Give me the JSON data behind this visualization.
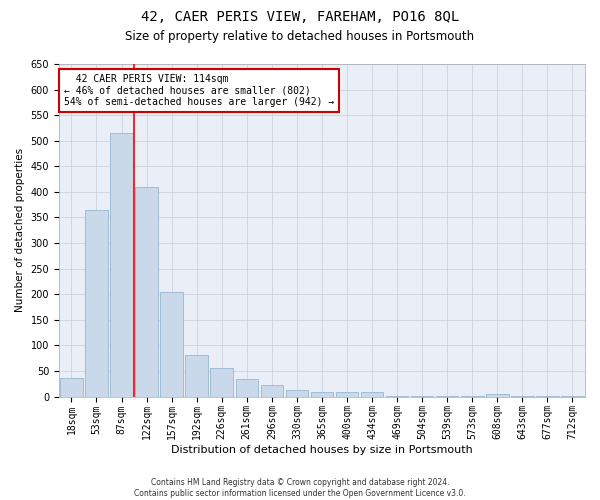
{
  "title": "42, CAER PERIS VIEW, FAREHAM, PO16 8QL",
  "subtitle": "Size of property relative to detached houses in Portsmouth",
  "xlabel": "Distribution of detached houses by size in Portsmouth",
  "ylabel": "Number of detached properties",
  "categories": [
    "18sqm",
    "53sqm",
    "87sqm",
    "122sqm",
    "157sqm",
    "192sqm",
    "226sqm",
    "261sqm",
    "296sqm",
    "330sqm",
    "365sqm",
    "400sqm",
    "434sqm",
    "469sqm",
    "504sqm",
    "539sqm",
    "573sqm",
    "608sqm",
    "643sqm",
    "677sqm",
    "712sqm"
  ],
  "values": [
    37,
    365,
    515,
    410,
    205,
    82,
    55,
    35,
    22,
    12,
    8,
    8,
    8,
    2,
    2,
    2,
    2,
    5,
    2,
    2,
    2
  ],
  "bar_color": "#cad9ea",
  "bar_edge_color": "#8aaec8",
  "red_line_index": 3,
  "annotation_line1": "  42 CAER PERIS VIEW: 114sqm  ",
  "annotation_line2": "← 46% of detached houses are smaller (802)",
  "annotation_line3": "54% of semi-detached houses are larger (942) →",
  "annotation_box_color": "#ffffff",
  "annotation_box_edge_color": "#cc0000",
  "ylim": [
    0,
    650
  ],
  "yticks": [
    0,
    50,
    100,
    150,
    200,
    250,
    300,
    350,
    400,
    450,
    500,
    550,
    600,
    650
  ],
  "footer_line1": "Contains HM Land Registry data © Crown copyright and database right 2024.",
  "footer_line2": "Contains public sector information licensed under the Open Government Licence v3.0.",
  "bg_color": "#ffffff",
  "plot_bg_color": "#eaeff7",
  "grid_color": "#c8cdd8",
  "title_fontsize": 10,
  "subtitle_fontsize": 8.5,
  "xlabel_fontsize": 8,
  "ylabel_fontsize": 7.5,
  "tick_fontsize": 7,
  "annotation_fontsize": 7,
  "footer_fontsize": 5.5
}
